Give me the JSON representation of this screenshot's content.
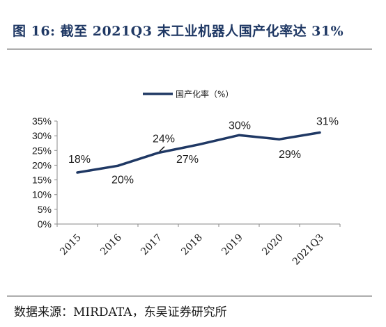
{
  "header": {
    "title": "图 16:  截至 2021Q3 末工业机器人国产化率达 31%"
  },
  "footer": {
    "source": "数据来源：MIRDATA，东吴证券研究所"
  },
  "chart_data": {
    "type": "line",
    "title": "",
    "xlabel": "",
    "ylabel": "",
    "categories": [
      "2015",
      "2016",
      "2017",
      "2018",
      "2019",
      "2020",
      "2021Q3"
    ],
    "series": [
      {
        "name": "国产化率（%）",
        "values": [
          17.5,
          19.8,
          24.2,
          27,
          30.2,
          28.8,
          31.1
        ],
        "labels": [
          "18%",
          "20%",
          "24%",
          "27%",
          "30%",
          "29%",
          "31%"
        ],
        "color": "#1f3864"
      }
    ],
    "ylim": [
      0,
      35
    ],
    "yticks": [
      0,
      5,
      10,
      15,
      20,
      25,
      30,
      35
    ],
    "ytick_labels": [
      "0%",
      "5%",
      "10%",
      "15%",
      "20%",
      "25%",
      "30%",
      "35%"
    ],
    "grid": false,
    "legend": "top-center"
  }
}
